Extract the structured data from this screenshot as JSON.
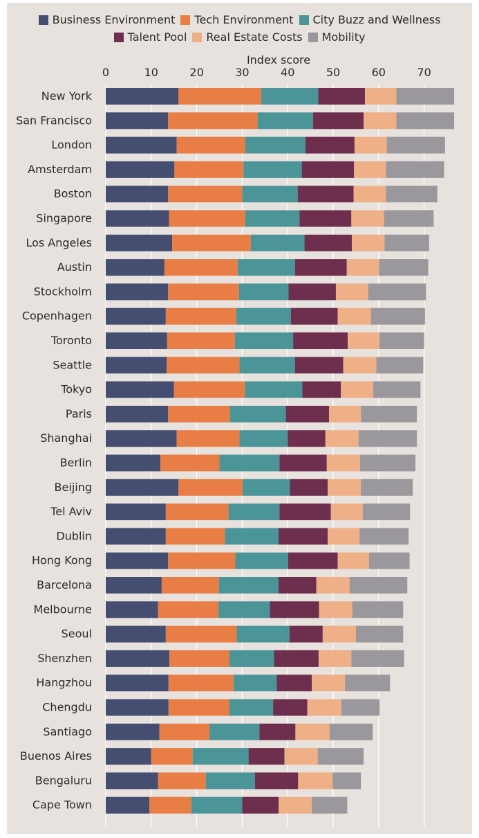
{
  "chart_data": {
    "type": "bar",
    "orientation": "horizontal",
    "stacked": true,
    "xlabel": "Index score",
    "xlim": [
      0,
      76
    ],
    "xticks": [
      0,
      10,
      20,
      30,
      40,
      50,
      60,
      70
    ],
    "grid": true,
    "legend_position": "top",
    "categories": [
      "New York",
      "San Francisco",
      "London",
      "Amsterdam",
      "Boston",
      "Singapore",
      "Los Angeles",
      "Austin",
      "Stockholm",
      "Copenhagen",
      "Toronto",
      "Seattle",
      "Tokyo",
      "Paris",
      "Shanghai",
      "Berlin",
      "Beijing",
      "Tel Aviv",
      "Dublin",
      "Hong Kong",
      "Barcelona",
      "Melbourne",
      "Seoul",
      "Shenzhen",
      "Hangzhou",
      "Chengdu",
      "Santiago",
      "Buenos Aires",
      "Bengaluru",
      "Cape Town"
    ],
    "series": [
      {
        "name": "Business Environment",
        "color": "#454d70",
        "values": [
          16.0,
          13.7,
          15.6,
          15.1,
          13.7,
          13.9,
          14.6,
          12.9,
          13.7,
          13.2,
          13.5,
          13.4,
          15.0,
          13.7,
          15.6,
          12.0,
          16.0,
          13.2,
          13.2,
          13.7,
          12.3,
          11.5,
          13.2,
          14.0,
          13.8,
          13.8,
          11.8,
          10.0,
          11.5,
          9.6
        ]
      },
      {
        "name": "Tech Environment",
        "color": "#e87e45",
        "values": [
          18.2,
          19.7,
          15.1,
          15.2,
          16.3,
          16.8,
          17.3,
          16.1,
          15.6,
          15.5,
          14.9,
          16.0,
          15.6,
          13.6,
          13.8,
          13.0,
          14.1,
          13.8,
          13.0,
          14.8,
          12.6,
          13.3,
          15.6,
          13.2,
          14.3,
          13.4,
          11.0,
          9.1,
          10.5,
          9.2
        ]
      },
      {
        "name": "City Buzz and Wellness",
        "color": "#4b9599",
        "values": [
          12.5,
          12.2,
          13.2,
          12.8,
          12.2,
          11.9,
          11.8,
          12.6,
          10.9,
          12.0,
          12.8,
          12.2,
          12.6,
          12.3,
          10.6,
          13.2,
          10.4,
          11.2,
          11.8,
          11.6,
          13.1,
          11.3,
          11.6,
          9.8,
          9.5,
          9.6,
          11.0,
          12.3,
          10.8,
          11.2
        ]
      },
      {
        "name": "Talent Pool",
        "color": "#6e2e4e",
        "values": [
          10.3,
          11.1,
          10.8,
          11.5,
          12.3,
          11.4,
          10.4,
          11.4,
          10.4,
          10.3,
          12.0,
          10.6,
          8.5,
          9.5,
          8.3,
          10.4,
          8.3,
          11.3,
          10.8,
          10.9,
          8.3,
          10.8,
          7.3,
          9.8,
          7.7,
          7.5,
          7.9,
          7.9,
          9.5,
          8.0
        ]
      },
      {
        "name": "Real Estate Costs",
        "color": "#efb088",
        "values": [
          6.9,
          7.2,
          7.1,
          7.0,
          7.1,
          7.2,
          7.2,
          7.1,
          7.1,
          7.3,
          7.0,
          7.3,
          7.1,
          7.0,
          7.3,
          7.3,
          7.3,
          7.0,
          7.0,
          6.9,
          7.3,
          7.3,
          7.3,
          7.2,
          7.3,
          7.5,
          7.5,
          7.3,
          7.6,
          7.3
        ]
      },
      {
        "name": "Mobility",
        "color": "#9a989c",
        "values": [
          12.7,
          12.7,
          12.8,
          12.8,
          11.3,
          10.9,
          9.8,
          10.8,
          12.7,
          11.9,
          9.8,
          10.3,
          10.4,
          12.3,
          12.8,
          12.2,
          11.4,
          10.4,
          10.8,
          8.9,
          12.7,
          11.2,
          10.4,
          11.6,
          9.9,
          8.4,
          9.5,
          10.1,
          6.2,
          7.8
        ]
      }
    ]
  }
}
